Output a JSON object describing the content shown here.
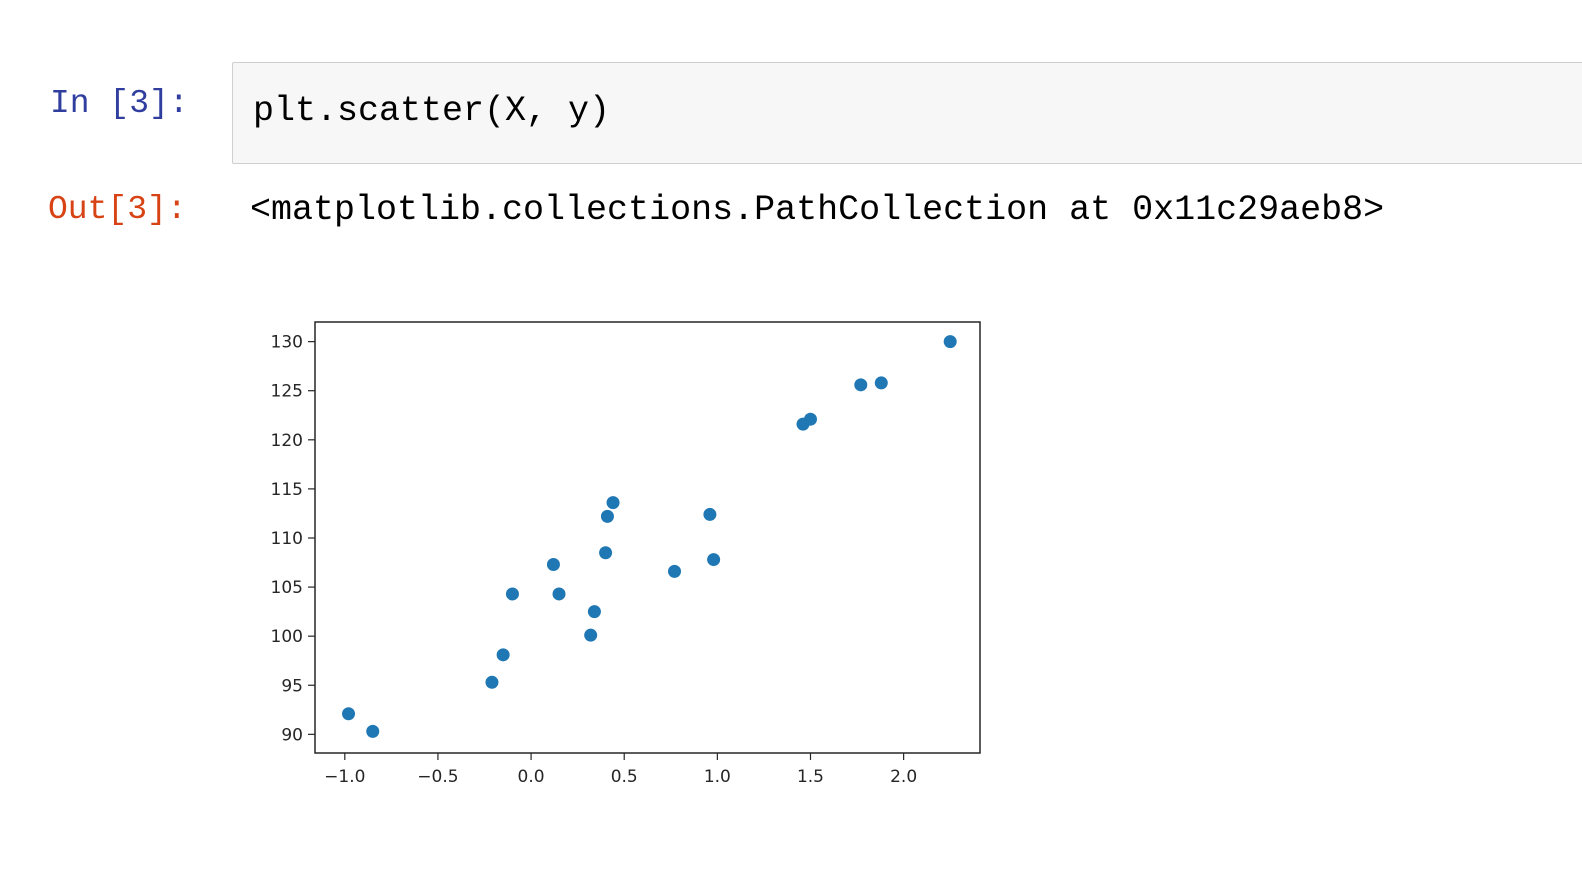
{
  "cell": {
    "in_prompt": "In [3]:",
    "code": "plt.scatter(X, y)",
    "out_prompt": "Out[3]:",
    "output_repr": "<matplotlib.collections.PathCollection at 0x11c29aeb8>"
  },
  "chart_data": {
    "type": "scatter",
    "title": "",
    "xlabel": "",
    "ylabel": "",
    "xlim": [
      -1.16,
      2.41
    ],
    "ylim": [
      88.1,
      132.0
    ],
    "grid": false,
    "marker_color": "#1f77b4",
    "x_ticks": [
      -1.0,
      -0.5,
      0.0,
      0.5,
      1.0,
      1.5,
      2.0
    ],
    "x_tick_labels": [
      "−1.0",
      "−0.5",
      "0.0",
      "0.5",
      "1.0",
      "1.5",
      "2.0"
    ],
    "y_ticks": [
      90,
      95,
      100,
      105,
      110,
      115,
      120,
      125,
      130
    ],
    "y_tick_labels": [
      "90",
      "95",
      "100",
      "105",
      "110",
      "115",
      "120",
      "125",
      "130"
    ],
    "points": [
      {
        "x": -0.98,
        "y": 92.1
      },
      {
        "x": -0.85,
        "y": 90.3
      },
      {
        "x": -0.21,
        "y": 95.3
      },
      {
        "x": -0.15,
        "y": 98.1
      },
      {
        "x": -0.1,
        "y": 104.3
      },
      {
        "x": 0.12,
        "y": 107.3
      },
      {
        "x": 0.15,
        "y": 104.3
      },
      {
        "x": 0.32,
        "y": 100.1
      },
      {
        "x": 0.34,
        "y": 102.5
      },
      {
        "x": 0.4,
        "y": 108.5
      },
      {
        "x": 0.41,
        "y": 112.2
      },
      {
        "x": 0.44,
        "y": 113.6
      },
      {
        "x": 0.77,
        "y": 106.6
      },
      {
        "x": 0.96,
        "y": 112.4
      },
      {
        "x": 0.98,
        "y": 107.8
      },
      {
        "x": 1.46,
        "y": 121.6
      },
      {
        "x": 1.5,
        "y": 122.1
      },
      {
        "x": 1.77,
        "y": 125.6
      },
      {
        "x": 1.88,
        "y": 125.8
      },
      {
        "x": 2.25,
        "y": 130.0
      }
    ]
  }
}
